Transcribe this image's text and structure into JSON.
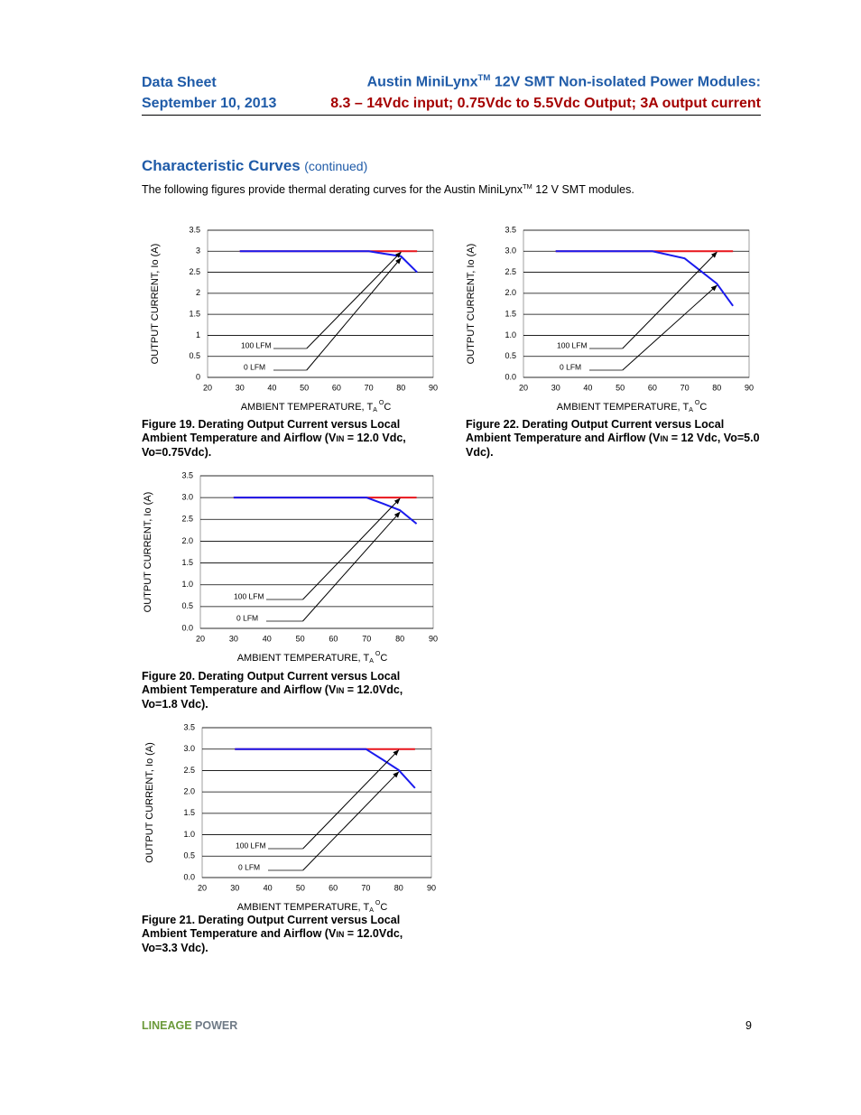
{
  "header": {
    "doc_type": "Data Sheet",
    "date": "September 10, 2013",
    "title_a": "Austin MiniLynx",
    "title_tm": "TM",
    "title_b": " 12V SMT Non-isolated Power Modules:",
    "subtitle": "8.3 – 14Vdc input; 0.75Vdc to 5.5Vdc Output; 3A output current"
  },
  "section": {
    "title": "Characteristic Curves",
    "note": "(continued)",
    "intro_a": "The following figures provide thermal derating curves for the Austin MiniLynx",
    "intro_tm": "TM",
    "intro_b": " 12 V SMT modules."
  },
  "chart_data": [
    {
      "type": "line",
      "y_label": "OUTPUT CURRENT, Io  (A)",
      "x_label": {
        "text": "AMBIENT TEMPERATURE, T",
        "sub": "A",
        "sup": "O",
        "end": "C"
      },
      "caption": [
        "Figure 19. Derating Output Current versus Local Ambient Temperature and Airflow (V",
        "IN",
        " = 12.0 Vdc, Vo=0.75Vdc)."
      ],
      "x": [
        30,
        70,
        75,
        80,
        85
      ],
      "series": [
        {
          "name": "100 LFM",
          "color": "#e8141b",
          "values": [
            3,
            3,
            3,
            3,
            3
          ]
        },
        {
          "name": "0 LFM",
          "color": "#1a1aee",
          "values": [
            3,
            3,
            2.94,
            2.88,
            2.5
          ]
        }
      ],
      "xlim": [
        20,
        90
      ],
      "xticks": [
        20,
        30,
        40,
        50,
        60,
        70,
        80,
        90
      ],
      "ylim": [
        0,
        3.5
      ],
      "yticks": [
        0,
        0.5,
        1,
        1.5,
        2,
        2.5,
        3,
        3.5
      ],
      "grid": true
    },
    {
      "type": "line",
      "y_label": "OUTPUT CURRENT, Io  (A)",
      "x_label": {
        "text": "AMBIENT TEMPERATURE, T",
        "sub": "A",
        "sup": "O",
        "end": "C"
      },
      "caption": [
        "Figure 20.  Derating Output Current versus Local Ambient Temperature and Airflow (V",
        "IN",
        " = 12.0Vdc, Vo=1.8 Vdc)."
      ],
      "x": [
        30,
        70,
        75,
        80,
        85
      ],
      "series": [
        {
          "name": "100 LFM",
          "color": "#e8141b",
          "values": [
            3,
            3,
            3,
            3,
            3
          ]
        },
        {
          "name": "0 LFM",
          "color": "#1a1aee",
          "values": [
            3,
            3,
            2.86,
            2.71,
            2.4
          ]
        }
      ],
      "xlim": [
        20,
        90
      ],
      "xticks": [
        20,
        30,
        40,
        50,
        60,
        70,
        80,
        90
      ],
      "ylim": [
        0,
        3.5
      ],
      "yticks": [
        {
          "value": 0,
          "label": "0.0"
        },
        0.5,
        {
          "value": 1,
          "label": "1.0"
        },
        1.5,
        {
          "value": 2,
          "label": "2.0"
        },
        2.5,
        {
          "value": 3,
          "label": "3.0"
        },
        3.5
      ],
      "grid": true
    },
    {
      "type": "line",
      "y_label": "OUTPUT CURRENT, Io  (A)",
      "x_label": {
        "text": "AMBIENT TEMPERATURE, T",
        "sub": "A",
        "sup": "O",
        "end": "C"
      },
      "caption": [
        "Figure 21.  Derating Output Current versus Local Ambient Temperature and Airflow (V",
        "IN",
        " = 12.0Vdc, Vo=3.3 Vdc)."
      ],
      "x": [
        30,
        70,
        75,
        80,
        85
      ],
      "series": [
        {
          "name": "100 LFM",
          "color": "#e8141b",
          "values": [
            3,
            3,
            3,
            3,
            3
          ]
        },
        {
          "name": "0 LFM",
          "color": "#1a1aee",
          "values": [
            3,
            3,
            2.76,
            2.51,
            2.09
          ]
        }
      ],
      "xlim": [
        20,
        90
      ],
      "xticks": [
        20,
        30,
        40,
        50,
        60,
        70,
        80,
        90
      ],
      "ylim": [
        0,
        3.5
      ],
      "yticks": [
        {
          "value": 0,
          "label": "0.0"
        },
        0.5,
        {
          "value": 1,
          "label": "1.0"
        },
        1.5,
        {
          "value": 2,
          "label": "2.0"
        },
        2.5,
        {
          "value": 3,
          "label": "3.0"
        },
        3.5
      ],
      "grid": true
    },
    {
      "type": "line",
      "y_label": "OUTPUT CURRENT, Io  (A)",
      "x_label": {
        "text": "AMBIENT TEMPERATURE, T",
        "sub": "A",
        "sup": "O",
        "end": "C"
      },
      "caption": [
        "Figure 22.   Derating Output Current versus Local Ambient Temperature and Airflow (V",
        "IN",
        " = 12 Vdc, Vo=5.0 Vdc)."
      ],
      "x": [
        30,
        60,
        70,
        75,
        80,
        85
      ],
      "series": [
        {
          "name": "100 LFM",
          "color": "#e8141b",
          "values": [
            3,
            3,
            3,
            3,
            3,
            3
          ]
        },
        {
          "name": "0 LFM",
          "color": "#1a1aee",
          "values": [
            3,
            3,
            2.83,
            2.53,
            2.23,
            1.7
          ]
        }
      ],
      "xlim": [
        20,
        90
      ],
      "xticks": [
        20,
        30,
        40,
        50,
        60,
        70,
        80,
        90
      ],
      "ylim": [
        0,
        3.5
      ],
      "yticks": [
        {
          "value": 0,
          "label": "0.0"
        },
        0.5,
        {
          "value": 1,
          "label": "1.0"
        },
        1.5,
        {
          "value": 2,
          "label": "2.0"
        },
        2.5,
        {
          "value": 3,
          "label": "3.0"
        },
        3.5
      ],
      "grid": true
    }
  ],
  "footer": {
    "brand_a": "LINEAGE",
    "brand_b": " POWER",
    "page": "9"
  }
}
